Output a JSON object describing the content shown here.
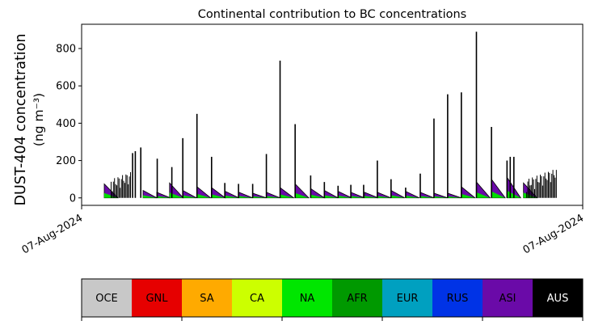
{
  "chart_data": {
    "type": "area",
    "title": "Continental contribution to BC concentrations",
    "ylabel_line1": "DUST-404 concentration",
    "ylabel_line2": "(ng m⁻³)",
    "xlabel": "",
    "ylim": [
      -40,
      930
    ],
    "yticks": [
      0,
      200,
      400,
      600,
      800
    ],
    "x_tick_labels": [
      "07-Aug-2024",
      "07-Aug-2024"
    ],
    "grid": false,
    "colors": {
      "green": "#00dd00",
      "purple": "#6a0aa8",
      "total": "#000000"
    },
    "hint_bumps": [
      {
        "x": 0.0,
        "peak": 75
      },
      {
        "x": 0.085,
        "peak": 40
      },
      {
        "x": 0.115,
        "peak": 30
      },
      {
        "x": 0.143,
        "peak": 80
      },
      {
        "x": 0.172,
        "peak": 40
      },
      {
        "x": 0.203,
        "peak": 60
      },
      {
        "x": 0.235,
        "peak": 55
      },
      {
        "x": 0.265,
        "peak": 35
      },
      {
        "x": 0.295,
        "peak": 30
      },
      {
        "x": 0.325,
        "peak": 25
      },
      {
        "x": 0.355,
        "peak": 30
      },
      {
        "x": 0.385,
        "peak": 55
      },
      {
        "x": 0.418,
        "peak": 75
      },
      {
        "x": 0.452,
        "peak": 50
      },
      {
        "x": 0.482,
        "peak": 40
      },
      {
        "x": 0.512,
        "peak": 35
      },
      {
        "x": 0.54,
        "peak": 30
      },
      {
        "x": 0.57,
        "peak": 30
      },
      {
        "x": 0.598,
        "peak": 30
      },
      {
        "x": 0.628,
        "peak": 40
      },
      {
        "x": 0.66,
        "peak": 35
      },
      {
        "x": 0.692,
        "peak": 30
      },
      {
        "x": 0.722,
        "peak": 25
      },
      {
        "x": 0.752,
        "peak": 25
      },
      {
        "x": 0.782,
        "peak": 60
      },
      {
        "x": 0.815,
        "peak": 85
      },
      {
        "x": 0.848,
        "peak": 100
      },
      {
        "x": 0.882,
        "peak": 110
      },
      {
        "x": 0.918,
        "peak": 80
      }
    ],
    "spikes": [
      {
        "x": 0.062,
        "value": 240
      },
      {
        "x": 0.068,
        "value": 250
      },
      {
        "x": 0.08,
        "value": 270
      },
      {
        "x": 0.116,
        "value": 210
      },
      {
        "x": 0.148,
        "value": 165
      },
      {
        "x": 0.172,
        "value": 320
      },
      {
        "x": 0.203,
        "value": 450
      },
      {
        "x": 0.235,
        "value": 220
      },
      {
        "x": 0.264,
        "value": 80
      },
      {
        "x": 0.294,
        "value": 75
      },
      {
        "x": 0.325,
        "value": 75
      },
      {
        "x": 0.355,
        "value": 235
      },
      {
        "x": 0.385,
        "value": 735
      },
      {
        "x": 0.418,
        "value": 395
      },
      {
        "x": 0.452,
        "value": 120
      },
      {
        "x": 0.482,
        "value": 85
      },
      {
        "x": 0.512,
        "value": 65
      },
      {
        "x": 0.54,
        "value": 70
      },
      {
        "x": 0.568,
        "value": 70
      },
      {
        "x": 0.598,
        "value": 200
      },
      {
        "x": 0.628,
        "value": 100
      },
      {
        "x": 0.66,
        "value": 55
      },
      {
        "x": 0.692,
        "value": 130
      },
      {
        "x": 0.722,
        "value": 425
      },
      {
        "x": 0.752,
        "value": 555
      },
      {
        "x": 0.782,
        "value": 565
      },
      {
        "x": 0.815,
        "value": 890
      },
      {
        "x": 0.848,
        "value": 380
      },
      {
        "x": 0.882,
        "value": 200
      },
      {
        "x": 0.889,
        "value": 220
      },
      {
        "x": 0.897,
        "value": 220
      }
    ],
    "continents": [
      {
        "code": "OCE",
        "color": "#c8c8c8",
        "text_color": "#000000"
      },
      {
        "code": "GNL",
        "color": "#e60000",
        "text_color": "#000000"
      },
      {
        "code": "SA",
        "color": "#ffaa00",
        "text_color": "#000000"
      },
      {
        "code": "CA",
        "color": "#ccff00",
        "text_color": "#000000"
      },
      {
        "code": "NA",
        "color": "#00e600",
        "text_color": "#000000"
      },
      {
        "code": "AFR",
        "color": "#009900",
        "text_color": "#000000"
      },
      {
        "code": "EUR",
        "color": "#00a0c0",
        "text_color": "#000000"
      },
      {
        "code": "RUS",
        "color": "#0033e6",
        "text_color": "#000000"
      },
      {
        "code": "ASI",
        "color": "#6a0aa8",
        "text_color": "#000000"
      },
      {
        "code": "AUS",
        "color": "#000000",
        "text_color": "#ffffff"
      }
    ]
  }
}
